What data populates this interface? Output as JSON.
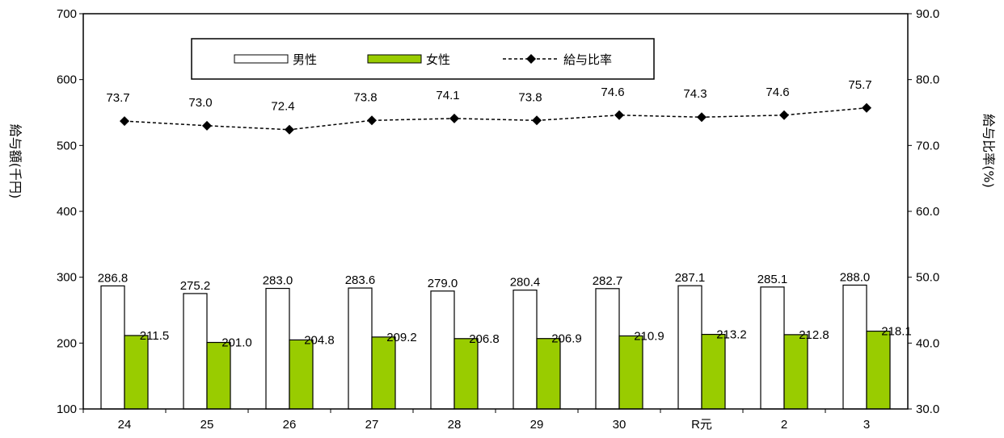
{
  "chart_data": {
    "type": "bar",
    "categories": [
      "24",
      "25",
      "26",
      "27",
      "28",
      "29",
      "30",
      "R元",
      "2",
      "3"
    ],
    "series": [
      {
        "name": "男性",
        "type": "bar",
        "axis": "left",
        "color": "#ffffff",
        "values": [
          286.8,
          275.2,
          283.0,
          283.6,
          279.0,
          280.4,
          282.7,
          287.1,
          285.1,
          288.0
        ]
      },
      {
        "name": "女性",
        "type": "bar",
        "axis": "left",
        "color": "#99cc00",
        "values": [
          211.5,
          201.0,
          204.8,
          209.2,
          206.8,
          206.9,
          210.9,
          213.2,
          212.8,
          218.1
        ]
      },
      {
        "name": "給与比率",
        "type": "line",
        "axis": "right",
        "color": "#000000",
        "marker": "diamond",
        "dash": "dashed",
        "values": [
          73.7,
          73.0,
          72.4,
          73.8,
          74.1,
          73.8,
          74.6,
          74.3,
          74.6,
          75.7
        ]
      }
    ],
    "left_axis": {
      "label": "給与額(千円)",
      "range": [
        100,
        700
      ],
      "ticks": [
        "100",
        "200",
        "300",
        "400",
        "500",
        "600",
        "700"
      ]
    },
    "right_axis": {
      "label": "給与比率(%)",
      "range": [
        30,
        90
      ],
      "ticks": [
        "30.0",
        "40.0",
        "50.0",
        "60.0",
        "70.0",
        "80.0",
        "90.0"
      ]
    },
    "grid": false,
    "legend": {
      "position": "top-center",
      "entries": [
        "男性",
        "女性",
        "給与比率"
      ]
    }
  }
}
